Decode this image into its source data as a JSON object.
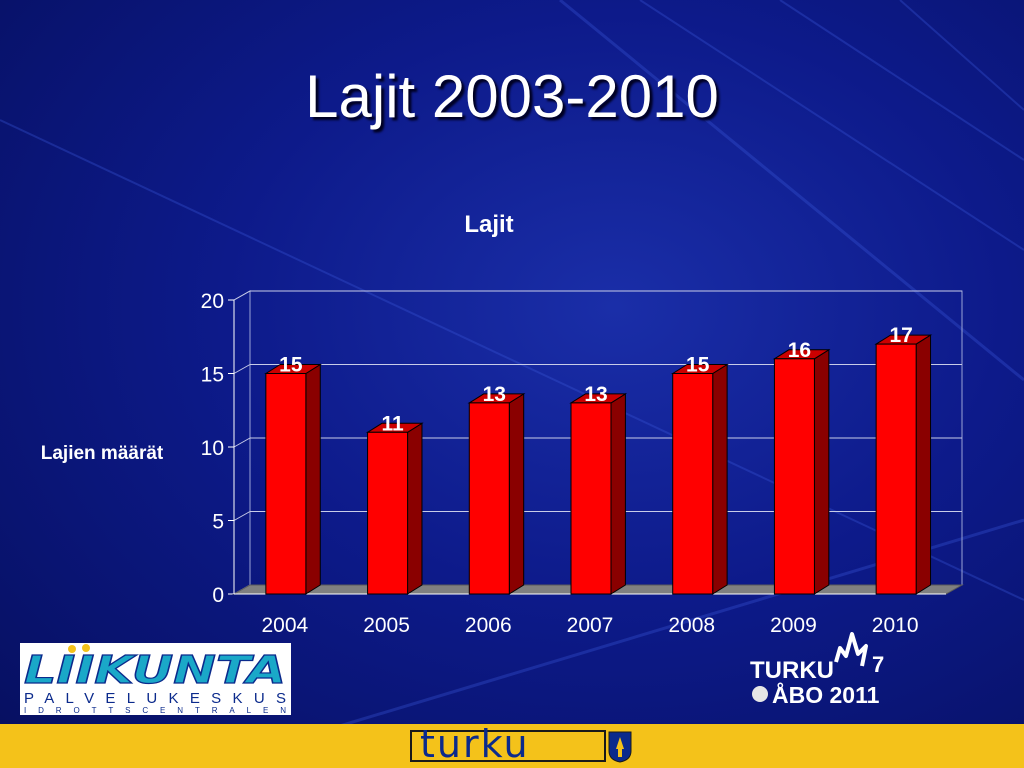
{
  "slide": {
    "title": "Lajit 2003-2010"
  },
  "chart_data": {
    "type": "bar",
    "title": "Lajit",
    "ylabel": "Lajien määrät",
    "xlabel": "",
    "categories": [
      "2004",
      "2005",
      "2006",
      "2007",
      "2008",
      "2009",
      "2010"
    ],
    "values": [
      15,
      11,
      13,
      13,
      15,
      16,
      17
    ],
    "ylim": [
      0,
      20
    ],
    "yticks": [
      0,
      5,
      10,
      15,
      20
    ],
    "grid": true,
    "legend": "none",
    "bar_color": "#ff0000",
    "bar_side_color": "#8a0000",
    "floor_color": "#808080"
  },
  "logos": {
    "liikunta_main": "LIIKUNTA",
    "liikunta_sub": "PALVELUKESKUS",
    "liikunta_sub2": "IDROTTSCENTRALEN",
    "turku_event_line1": "TURKU",
    "turku_event_line2": "ÅBO 2011",
    "turku_event_number": "7",
    "footer_brand": "turku"
  },
  "colors": {
    "background": "#0d1a8a",
    "footer": "#f4c21a",
    "text": "#ffffff"
  }
}
